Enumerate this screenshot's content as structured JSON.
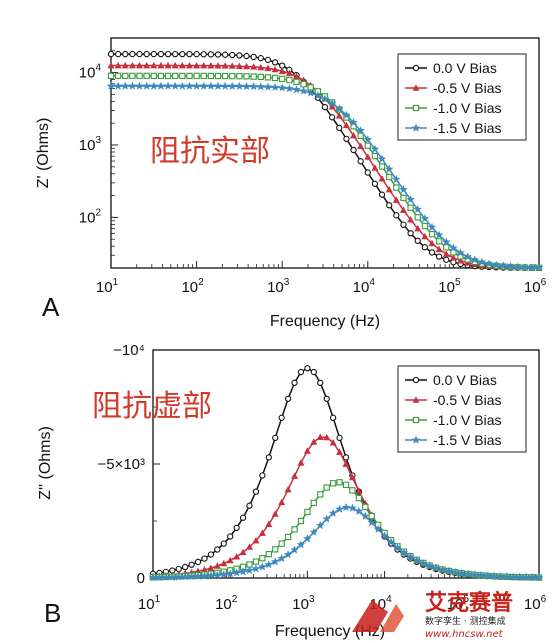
{
  "chart_data": [
    {
      "type": "line",
      "panel_label": "A",
      "annotation": "阻抗实部",
      "xlabel": "Frequency (Hz)",
      "ylabel": "Z' (Ohms)",
      "xscale": "log",
      "yscale": "log",
      "xlim": [
        10,
        1000000
      ],
      "ylim": [
        20,
        30000
      ],
      "x_ticks": [
        10,
        100,
        1000,
        10000,
        100000,
        1000000
      ],
      "x_tick_labels": [
        [
          "10",
          "1"
        ],
        [
          "10",
          "2"
        ],
        [
          "10",
          "3"
        ],
        [
          "10",
          "4"
        ],
        [
          "10",
          "5"
        ],
        [
          "10",
          "6"
        ]
      ],
      "y_ticks": [
        100,
        1000,
        10000
      ],
      "y_tick_labels": [
        [
          "10",
          "2"
        ],
        [
          "10",
          "3"
        ],
        [
          "10",
          "4"
        ]
      ],
      "legend_position": "top-right",
      "series": [
        {
          "name": "0.0 V Bias",
          "color": "#111111",
          "marker": "circle",
          "R0": 18000,
          "fc": 1500,
          "n": 1.0
        },
        {
          "name": "-0.5 V Bias",
          "color": "#c9303f",
          "marker": "triangle",
          "R0": 12500,
          "fc": 2300,
          "n": 0.98
        },
        {
          "name": "-1.0 V Bias",
          "color": "#3a9a3e",
          "marker": "square",
          "R0": 9000,
          "fc": 3300,
          "n": 0.96
        },
        {
          "name": "-1.5 V Bias",
          "color": "#3f88c0",
          "marker": "star",
          "R0": 6500,
          "fc": 4500,
          "n": 0.95
        }
      ],
      "rinf": 20
    },
    {
      "type": "line",
      "panel_label": "B",
      "annotation": "阻抗虚部",
      "xlabel": "Frequency (Hz)",
      "ylabel": "Z'' (Ohms)",
      "xscale": "log",
      "yscale": "linear",
      "xlim": [
        10,
        1000000
      ],
      "ylim": [
        0,
        -10000
      ],
      "x_ticks": [
        10,
        100,
        1000,
        10000,
        100000,
        1000000
      ],
      "x_tick_labels": [
        [
          "10",
          "1"
        ],
        [
          "10",
          "2"
        ],
        [
          "10",
          "3"
        ],
        [
          "10",
          "4"
        ],
        [
          "10",
          "5"
        ],
        [
          "10",
          "6"
        ]
      ],
      "y_ticks": [
        0,
        -5000,
        -10000
      ],
      "y_tick_labels": [
        "0",
        "−5×10³",
        "−10⁴"
      ],
      "legend_position": "top-right",
      "series": [
        {
          "name": "0.0 V Bias",
          "color": "#111111",
          "marker": "circle",
          "peak": -9200,
          "f_peak": 1000
        },
        {
          "name": "-0.5 V Bias",
          "color": "#c9303f",
          "marker": "triangle",
          "peak": -6200,
          "f_peak": 1600
        },
        {
          "name": "-1.0 V Bias",
          "color": "#3a9a3e",
          "marker": "square",
          "peak": -4200,
          "f_peak": 2500
        },
        {
          "name": "-1.5 V Bias",
          "color": "#3f88c0",
          "marker": "star",
          "peak": -3100,
          "f_peak": 3300
        }
      ]
    }
  ],
  "watermark": {
    "brand": "艾克赛普",
    "slogan": "数字孪生 · 测控集成",
    "url": "www.hncsw.net"
  }
}
